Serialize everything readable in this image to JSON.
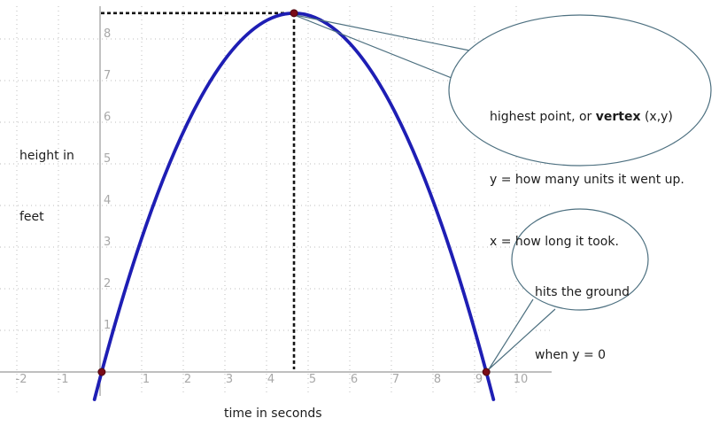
{
  "chart_data": {
    "type": "line",
    "title": "",
    "xlabel": "time in seconds",
    "ylabel": "height in feet",
    "x_ticks": [
      -2,
      -1,
      1,
      2,
      3,
      4,
      5,
      6,
      7,
      8,
      9,
      10
    ],
    "y_ticks": [
      1,
      2,
      3,
      4,
      5,
      6,
      7,
      8
    ],
    "xlim": [
      -2.4,
      10.85
    ],
    "ylim": [
      -0.7,
      8.9
    ],
    "grid": true,
    "legend_position": "none",
    "series": [
      {
        "name": "projectile height curve",
        "shape": "parabola",
        "vertex": {
          "x": 4.66,
          "y": 8.62
        },
        "x_intercepts": [
          0.04,
          9.28
        ],
        "color": "#1e1eb4"
      }
    ],
    "marked_points": [
      {
        "name": "vertex",
        "x": 4.66,
        "y": 8.62
      },
      {
        "name": "launch-root",
        "x": 0.04,
        "y": 0
      },
      {
        "name": "landing-root",
        "x": 9.28,
        "y": 0
      }
    ]
  },
  "labels": {
    "ylabel_line1": "height in",
    "ylabel_line2": "feet",
    "xlabel": "time in seconds"
  },
  "annotations": {
    "vertex_bubble": {
      "line1_prefix": "highest point, or ",
      "line1_bold": "vertex",
      "line1_suffix": " (x,y)",
      "line2": "y = how many units it went up.",
      "line3": "x = how long it took."
    },
    "ground_bubble": {
      "line1": "hits the ground",
      "line2": "when y = 0"
    }
  },
  "colors": {
    "background": "#ffffff",
    "curve": "#1e1eb4",
    "axis": "#999999",
    "grid": "#bdbdbd",
    "tick_label": "#a8a8a8",
    "point_fill": "#7a0c18",
    "point_stroke": "#4d0710",
    "dashed_guide": "#141414",
    "bubble_stroke": "#4d7080",
    "text": "#1c1c1c"
  }
}
